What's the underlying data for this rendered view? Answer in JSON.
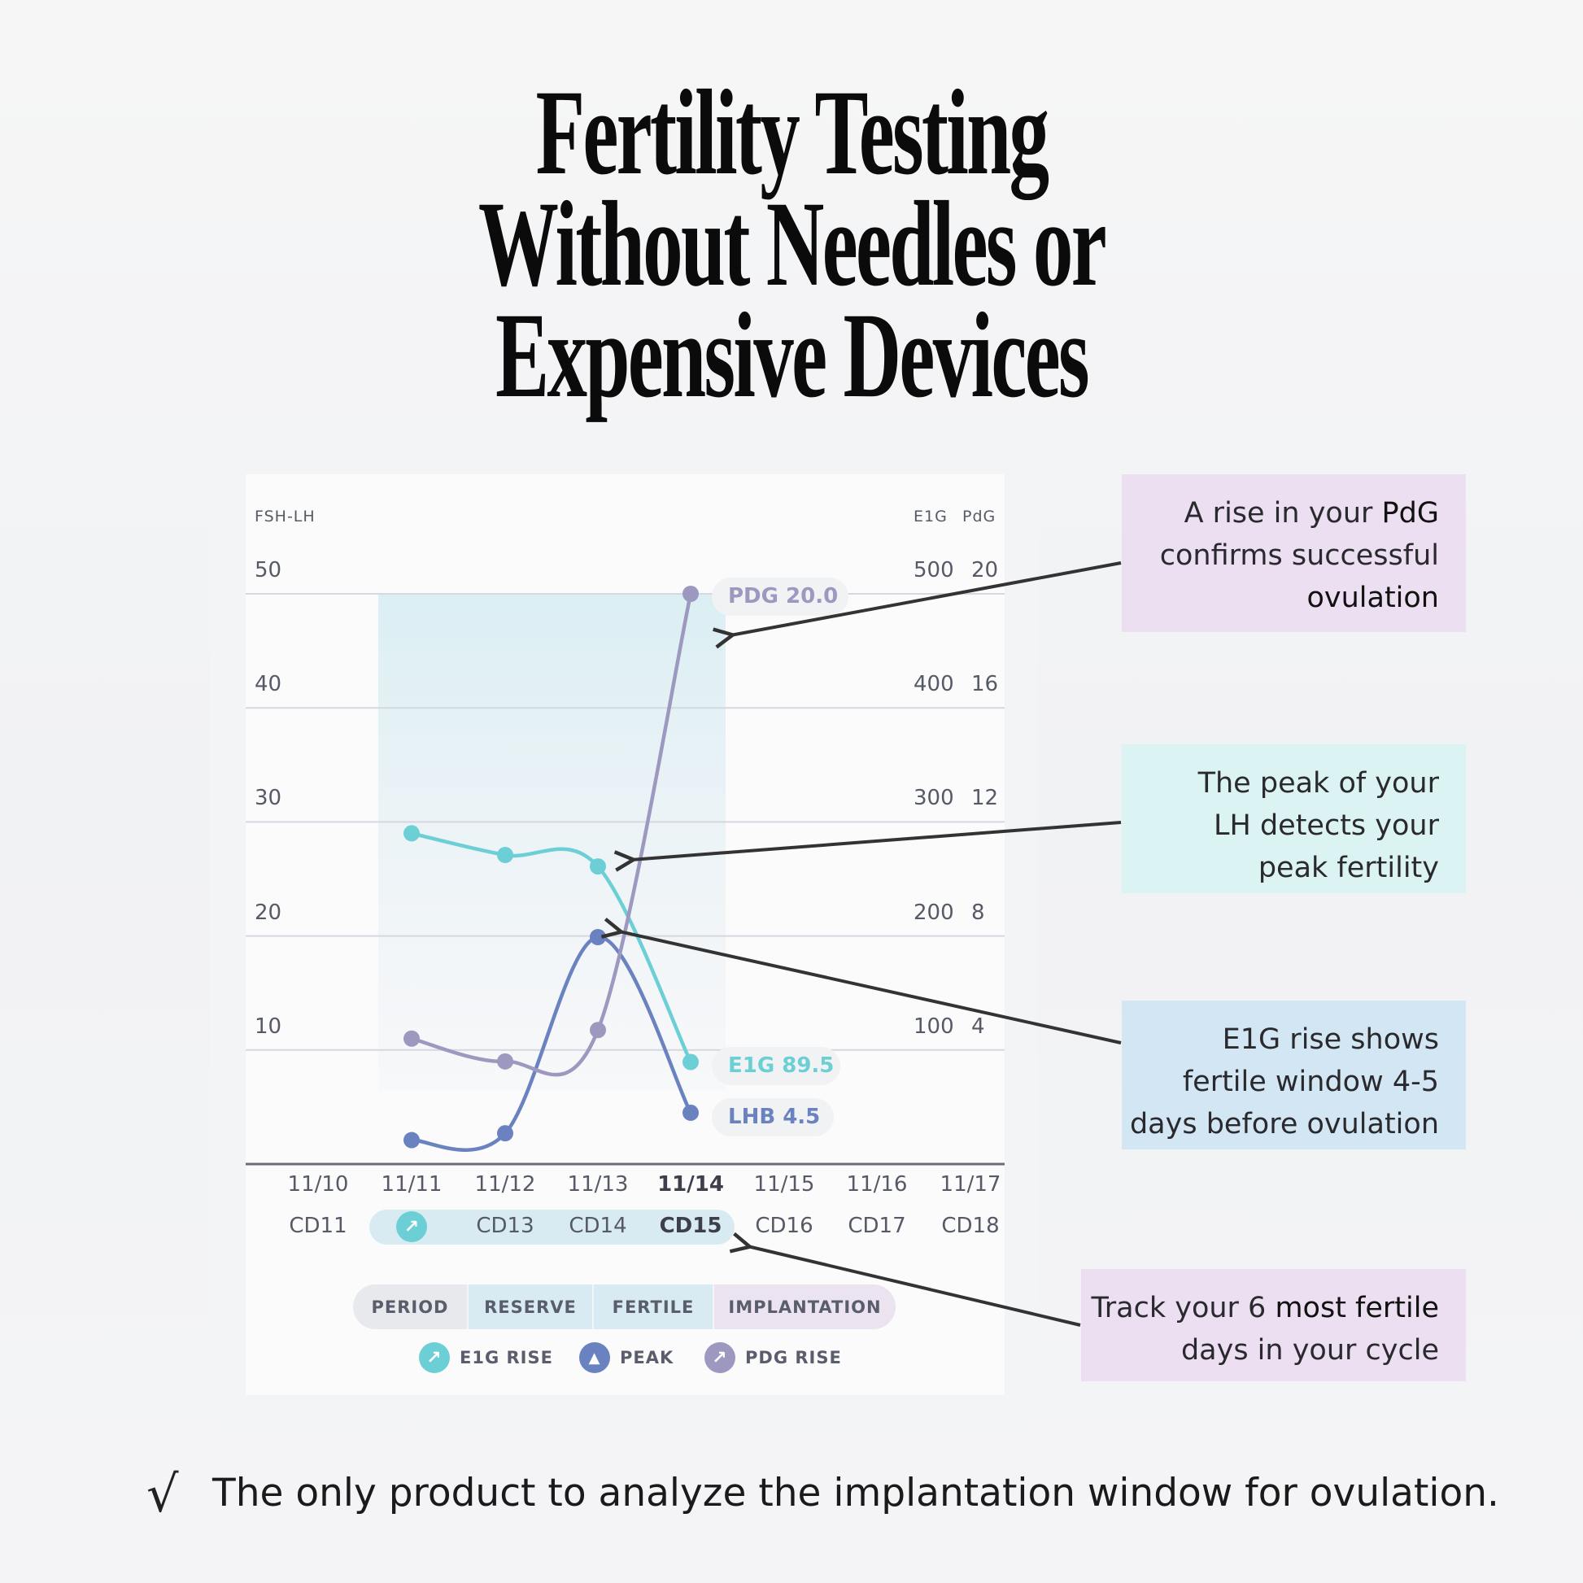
{
  "title": [
    "Fertility Testing",
    "Without Needles or",
    "Expensive Devices"
  ],
  "chart_data": {
    "type": "line",
    "x": [
      "11/10",
      "11/11",
      "11/12",
      "11/13",
      "11/14",
      "11/15",
      "11/16",
      "11/17"
    ],
    "cycle_days": [
      "CD11",
      "CD12",
      "CD13",
      "CD14",
      "CD15",
      "CD16",
      "CD17",
      "CD18"
    ],
    "highlighted_date": "11/14",
    "left_axis": {
      "label": "FSH-LH",
      "ticks": [
        "50",
        "40",
        "30",
        "20",
        "10"
      ],
      "range": [
        0,
        50
      ]
    },
    "right_axes": [
      {
        "label": "E1G",
        "ticks": [
          "500",
          "400",
          "300",
          "200",
          "100"
        ],
        "range": [
          0,
          500
        ]
      },
      {
        "label": "PdG",
        "ticks": [
          "20",
          "16",
          "12",
          "8",
          "4"
        ],
        "range": [
          0,
          20
        ]
      }
    ],
    "series": [
      {
        "name": "E1G",
        "axis": "E1G",
        "color": "#6ccfd6",
        "values": [
          null,
          290,
          271,
          261,
          89.5,
          null,
          null,
          null
        ],
        "end_label": "E1G 89.5"
      },
      {
        "name": "LHB",
        "axis": "FSH-LH",
        "color": "#6b82c0",
        "values": [
          null,
          2.1,
          2.7,
          19.9,
          4.5,
          null,
          null,
          null
        ],
        "end_label": "LHB 4.5"
      },
      {
        "name": "PdG",
        "axis": "PdG",
        "color": "#9c98bf",
        "values": [
          null,
          4.4,
          3.6,
          4.7,
          20.0,
          null,
          null,
          null
        ],
        "end_label": "PDG 20.0"
      }
    ],
    "shaded_range": [
      "11/11",
      "11/14"
    ],
    "grid": true
  },
  "phases": [
    "PERIOD",
    "RESERVE",
    "FERTILE",
    "IMPLANTATION"
  ],
  "legend": [
    {
      "label": "E1G RISE",
      "color": "#6ccfd6",
      "icon": "arrow-up-right"
    },
    {
      "label": "PEAK",
      "color": "#6b82c0",
      "icon": "mountain"
    },
    {
      "label": "PDG RISE",
      "color": "#9c98bf",
      "icon": "arrow-up-right"
    }
  ],
  "callouts": [
    {
      "l1a": "A rise in your ",
      "l1b": "PdG",
      "l2": "confirms successful",
      "l3": "ovulation"
    },
    {
      "l1": "The peak of your",
      "l2": "LH detects your",
      "l3": "peak fertility"
    },
    {
      "l1": "E1G rise shows",
      "l2": "fertile window 4-5",
      "l3": "days before ovulation"
    },
    {
      "l1a": "Track your 6 ",
      "l1b": "most fertile",
      "l2": "days in your cycle"
    }
  ],
  "footer": {
    "check": "√",
    "text": "The only product to analyze the implantation window for ovulation."
  }
}
